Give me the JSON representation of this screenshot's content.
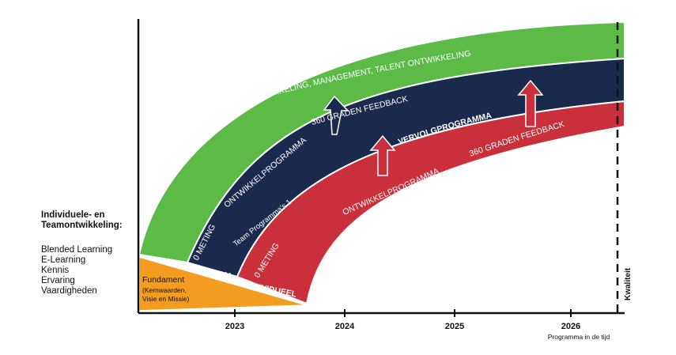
{
  "side_panel": {
    "heading_line1": "Individuele- en",
    "heading_line2": "Teamontwikkeling:",
    "items": [
      "Blended Learning",
      "E-Learning",
      "Kennis",
      "Ervaring",
      "Vaardigheden"
    ]
  },
  "bands": {
    "green": {
      "label": "ORGANISATIEONTWIKKELING, MANAGEMENT, TALENT ONTWIKKELING",
      "color": "#5cba47"
    },
    "navy": {
      "tag": "TEAM",
      "meting": "0 METING",
      "ontwikkel": "ONTWIKKELPROGRAMMA",
      "feedback": "360 GRADEN FEEDBACK",
      "team_programma": "Team Programma's 1",
      "vervolg": "VERVOLGPROGRAMMA",
      "color": "#1a2a4d"
    },
    "red": {
      "tag": "INDIVIDUEEL",
      "meting": "0 METING",
      "ontwikkel": "ONTWIKKELPROGRAMMA",
      "feedback": "360 GRADEN FEEDBACK",
      "color": "#c9303b"
    }
  },
  "foundation": {
    "title": "Fundament",
    "subtitle_line1": "(Kernwaarden,",
    "subtitle_line2": "Visie en Missie)",
    "color": "#f39c1f"
  },
  "axis": {
    "years": [
      "2023",
      "2024",
      "2025",
      "2026"
    ],
    "x_caption": "Programma in de tijd",
    "y_caption": "Kwaliteit"
  }
}
